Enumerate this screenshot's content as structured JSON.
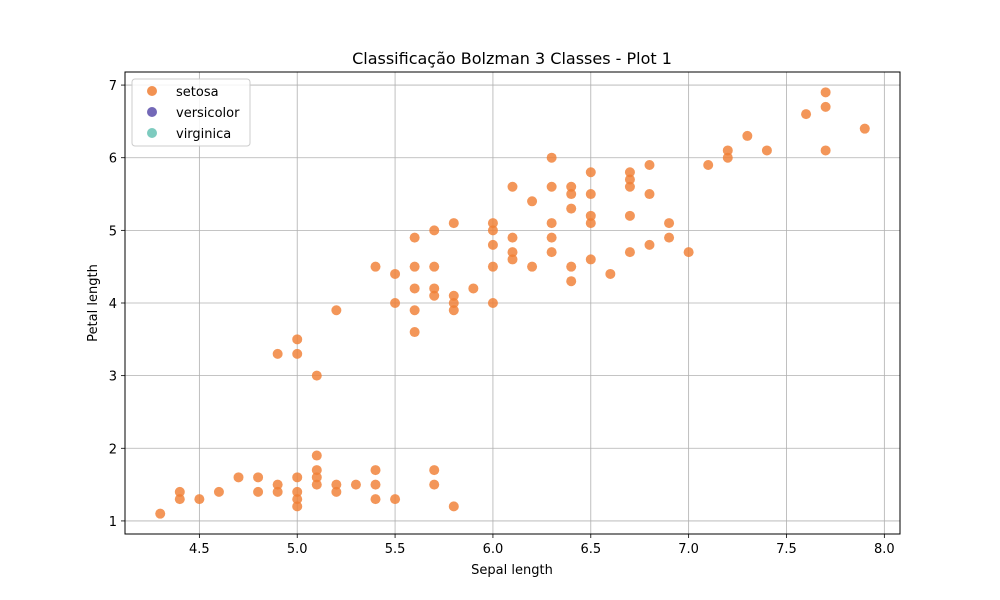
{
  "chart_data": {
    "type": "scatter",
    "title": "Classificação Bolzman 3 Classes - Plot 1",
    "xlabel": "Sepal length",
    "ylabel": "Petal length",
    "xlim": [
      4.12,
      8.08
    ],
    "ylim": [
      0.82,
      7.18
    ],
    "xticks": [
      "4.5",
      "5.0",
      "5.5",
      "6.0",
      "6.5",
      "7.0",
      "7.5",
      "8.0"
    ],
    "yticks": [
      "1",
      "2",
      "3",
      "4",
      "5",
      "6",
      "7"
    ],
    "grid": true,
    "legend_position": "top-left",
    "series": [
      {
        "name": "setosa",
        "color": "#f07f34",
        "points": [
          [
            4.3,
            1.1
          ],
          [
            4.4,
            1.3
          ],
          [
            4.4,
            1.4
          ],
          [
            4.5,
            1.3
          ],
          [
            4.6,
            1.4
          ],
          [
            4.7,
            1.6
          ],
          [
            4.8,
            1.4
          ],
          [
            4.8,
            1.6
          ],
          [
            4.9,
            1.4
          ],
          [
            4.9,
            1.5
          ],
          [
            5.0,
            1.2
          ],
          [
            5.0,
            1.3
          ],
          [
            5.0,
            1.4
          ],
          [
            5.0,
            1.6
          ],
          [
            5.1,
            1.5
          ],
          [
            5.1,
            1.6
          ],
          [
            5.1,
            1.7
          ],
          [
            5.1,
            1.9
          ],
          [
            5.2,
            1.4
          ],
          [
            5.2,
            1.5
          ],
          [
            5.3,
            1.5
          ],
          [
            5.4,
            1.3
          ],
          [
            5.4,
            1.5
          ],
          [
            5.4,
            1.7
          ],
          [
            5.5,
            1.3
          ],
          [
            5.7,
            1.5
          ],
          [
            5.7,
            1.7
          ],
          [
            5.8,
            1.2
          ],
          [
            4.9,
            3.3
          ],
          [
            5.0,
            3.3
          ],
          [
            5.0,
            3.5
          ],
          [
            5.1,
            3.0
          ],
          [
            5.2,
            3.9
          ],
          [
            5.4,
            4.5
          ],
          [
            5.5,
            4.0
          ],
          [
            5.5,
            4.4
          ],
          [
            5.6,
            3.6
          ],
          [
            5.6,
            3.9
          ],
          [
            5.6,
            4.2
          ],
          [
            5.6,
            4.5
          ],
          [
            5.6,
            4.9
          ],
          [
            5.7,
            4.1
          ],
          [
            5.7,
            4.2
          ],
          [
            5.7,
            4.5
          ],
          [
            5.7,
            5.0
          ],
          [
            5.8,
            3.9
          ],
          [
            5.8,
            4.0
          ],
          [
            5.8,
            4.1
          ],
          [
            5.8,
            5.1
          ],
          [
            5.9,
            4.2
          ],
          [
            6.0,
            4.0
          ],
          [
            6.0,
            4.5
          ],
          [
            6.0,
            4.8
          ],
          [
            6.0,
            5.0
          ],
          [
            6.0,
            5.1
          ],
          [
            6.1,
            4.6
          ],
          [
            6.1,
            4.7
          ],
          [
            6.1,
            4.9
          ],
          [
            6.1,
            5.6
          ],
          [
            6.2,
            4.5
          ],
          [
            6.2,
            5.4
          ],
          [
            6.3,
            4.7
          ],
          [
            6.3,
            4.9
          ],
          [
            6.3,
            5.1
          ],
          [
            6.3,
            5.6
          ],
          [
            6.3,
            6.0
          ],
          [
            6.4,
            4.3
          ],
          [
            6.4,
            4.5
          ],
          [
            6.4,
            5.3
          ],
          [
            6.4,
            5.5
          ],
          [
            6.4,
            5.6
          ],
          [
            6.5,
            4.6
          ],
          [
            6.5,
            5.1
          ],
          [
            6.5,
            5.2
          ],
          [
            6.5,
            5.5
          ],
          [
            6.5,
            5.8
          ],
          [
            6.6,
            4.4
          ],
          [
            6.7,
            4.7
          ],
          [
            6.7,
            5.2
          ],
          [
            6.7,
            5.6
          ],
          [
            6.7,
            5.7
          ],
          [
            6.7,
            5.8
          ],
          [
            6.8,
            4.8
          ],
          [
            6.8,
            5.5
          ],
          [
            6.8,
            5.9
          ],
          [
            6.9,
            4.9
          ],
          [
            6.9,
            5.1
          ],
          [
            7.0,
            4.7
          ],
          [
            7.1,
            5.9
          ],
          [
            7.2,
            6.0
          ],
          [
            7.2,
            6.1
          ],
          [
            7.3,
            6.3
          ],
          [
            7.4,
            6.1
          ],
          [
            7.6,
            6.6
          ],
          [
            7.7,
            6.1
          ],
          [
            7.7,
            6.7
          ],
          [
            7.7,
            6.9
          ],
          [
            7.9,
            6.4
          ]
        ]
      },
      {
        "name": "versicolor",
        "color": "#5a4eaa",
        "points": []
      },
      {
        "name": "virginica",
        "color": "#66c2b4",
        "points": []
      }
    ]
  }
}
